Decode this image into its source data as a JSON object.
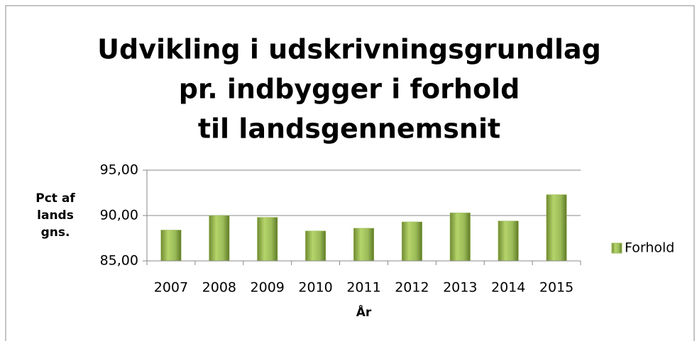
{
  "chart_data": {
    "type": "bar",
    "title": [
      "Udvikling i udskrivningsgrundlag",
      "pr. indbygger i forhold",
      "til landsgennemsnit"
    ],
    "ylabel": [
      "Pct af",
      "lands",
      "gns."
    ],
    "xlabel": "År",
    "categories": [
      "2007",
      "2008",
      "2009",
      "2010",
      "2011",
      "2012",
      "2013",
      "2014",
      "2015"
    ],
    "series": [
      {
        "name": "Forhold",
        "color": "#9bbb59",
        "values": [
          88.4,
          90.0,
          89.8,
          88.3,
          88.6,
          89.3,
          90.3,
          89.4,
          92.3
        ]
      }
    ],
    "ylim": [
      85,
      95
    ],
    "yticks": [
      {
        "value": 85,
        "label": "85,00"
      },
      {
        "value": 90,
        "label": "90,00"
      },
      {
        "value": 95,
        "label": "95,00"
      }
    ],
    "grid": true,
    "legend": "right"
  }
}
